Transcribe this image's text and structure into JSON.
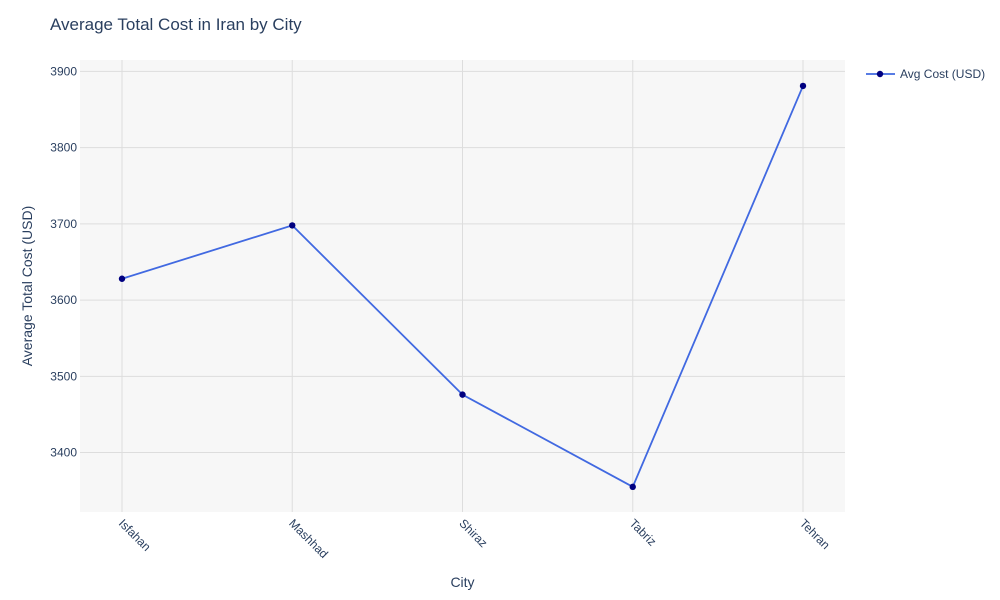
{
  "chart_data": {
    "type": "line",
    "title": "Average Total Cost in Iran by City",
    "xlabel": "City",
    "ylabel": "Average Total Cost (USD)",
    "categories": [
      "Isfahan",
      "Mashhad",
      "Shiraz",
      "Tabriz",
      "Tehran"
    ],
    "series": [
      {
        "name": "Avg Cost (USD)",
        "values": [
          3628,
          3698,
          3476,
          3355,
          3881
        ],
        "line_color": "#4169e1",
        "marker_color": "#000080"
      }
    ],
    "yticks": [
      3400,
      3500,
      3600,
      3700,
      3800,
      3900
    ],
    "ylim": [
      3322,
      3915
    ],
    "grid": true,
    "legend": "top-right",
    "plot_background": "#f7f7f7",
    "grid_color": "#dddddd"
  }
}
